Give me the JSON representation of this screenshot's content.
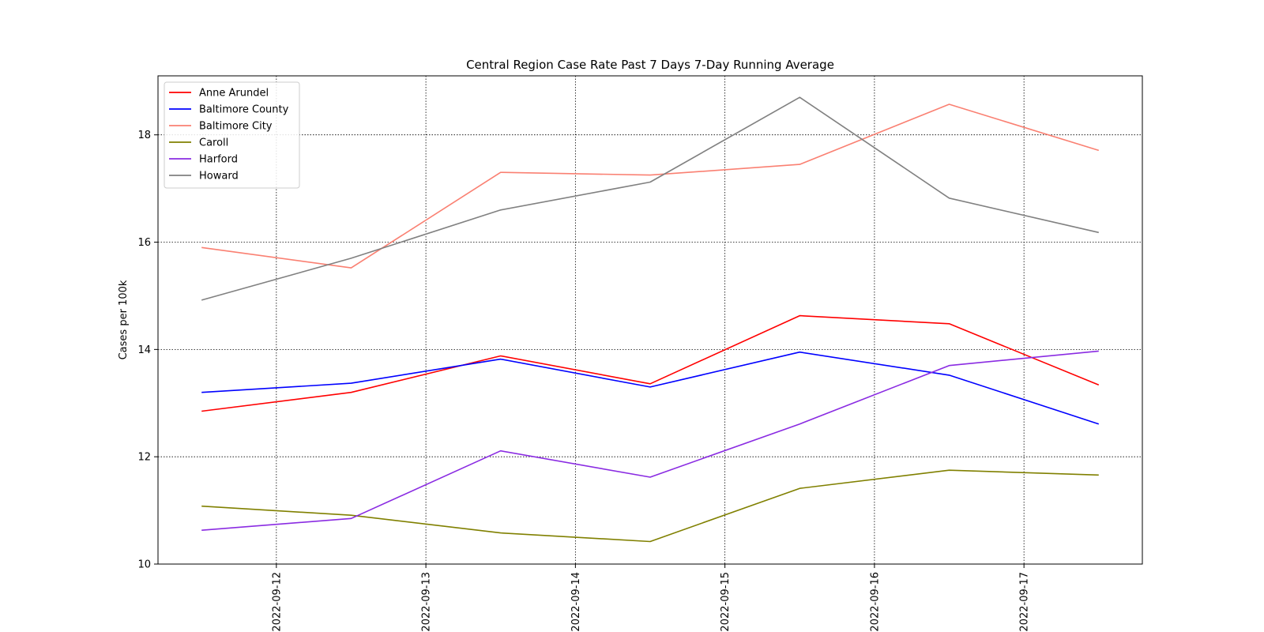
{
  "chart_data": {
    "type": "line",
    "title": "Central Region Case Rate  Past 7 Days 7-Day Running Average",
    "xlabel": "",
    "ylabel": "Cases per 100k",
    "x": [
      "2022-09-11T12:00",
      "2022-09-12T12:00",
      "2022-09-13T12:00",
      "2022-09-14T12:00",
      "2022-09-15T12:00",
      "2022-09-16T12:00",
      "2022-09-17T12:00"
    ],
    "x_ticks": [
      "2022-09-12",
      "2022-09-13",
      "2022-09-14",
      "2022-09-15",
      "2022-09-16",
      "2022-09-17"
    ],
    "xlim": [
      "2022-09-11T05:00",
      "2022-09-17T19:00"
    ],
    "y_ticks": [
      10,
      12,
      14,
      16,
      18
    ],
    "ylim": [
      10,
      19.1
    ],
    "grid": true,
    "legend_position": "top-left",
    "series": [
      {
        "name": "Anne Arundel",
        "color": "#ff0000",
        "values": [
          12.85,
          13.2,
          13.88,
          13.36,
          14.63,
          14.48,
          13.34
        ]
      },
      {
        "name": "Baltimore County",
        "color": "#0000ff",
        "values": [
          13.2,
          13.37,
          13.82,
          13.3,
          13.95,
          13.52,
          12.61
        ]
      },
      {
        "name": "Baltimore City",
        "color": "#fa8072",
        "values": [
          15.9,
          15.52,
          17.3,
          17.25,
          17.45,
          18.57,
          17.71
        ]
      },
      {
        "name": "Caroll",
        "color": "#808000",
        "values": [
          11.08,
          10.91,
          10.58,
          10.42,
          11.41,
          11.75,
          11.66
        ]
      },
      {
        "name": "Harford",
        "color": "#8a2be2",
        "values": [
          10.63,
          10.85,
          12.11,
          11.62,
          12.61,
          13.7,
          13.97
        ]
      },
      {
        "name": "Howard",
        "color": "#808080",
        "values": [
          14.92,
          15.7,
          16.6,
          17.12,
          18.7,
          16.82,
          16.18
        ]
      }
    ]
  }
}
